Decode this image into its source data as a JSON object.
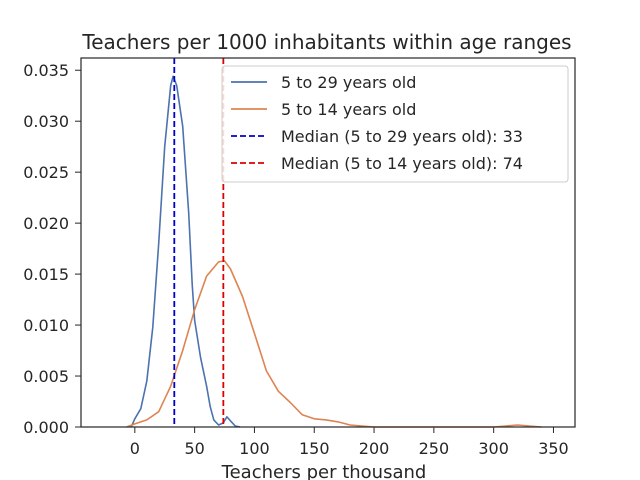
{
  "chart_data": {
    "type": "line",
    "title": "Teachers per 1000 inhabitants within age ranges",
    "xlabel": "Teachers per thousand",
    "ylabel": "",
    "xlim": [
      -45,
      368
    ],
    "ylim": [
      0,
      0.0362
    ],
    "x_ticks": [
      0,
      50,
      100,
      150,
      200,
      250,
      300,
      350
    ],
    "y_ticks": [
      0.0,
      0.005,
      0.01,
      0.015,
      0.02,
      0.025,
      0.03,
      0.035
    ],
    "y_tick_labels": [
      "0.000",
      "0.005",
      "0.010",
      "0.015",
      "0.020",
      "0.025",
      "0.030",
      "0.035"
    ],
    "grid": false,
    "legend_position": "top-right",
    "series": [
      {
        "name": "5 to 29 years old",
        "color": "#4c72b0",
        "style": "solid",
        "points": [
          [
            -3,
            0
          ],
          [
            0,
            0.0008
          ],
          [
            5,
            0.0018
          ],
          [
            10,
            0.0045
          ],
          [
            15,
            0.0098
          ],
          [
            20,
            0.018
          ],
          [
            25,
            0.0275
          ],
          [
            30,
            0.0335
          ],
          [
            32,
            0.0344
          ],
          [
            35,
            0.0335
          ],
          [
            40,
            0.0295
          ],
          [
            45,
            0.021
          ],
          [
            48,
            0.014
          ],
          [
            50,
            0.0105
          ],
          [
            55,
            0.0068
          ],
          [
            60,
            0.004
          ],
          [
            63,
            0.002
          ],
          [
            66,
            0.0007
          ],
          [
            70,
            0.0002
          ],
          [
            74,
            0.0004
          ],
          [
            77,
            0.001
          ],
          [
            80,
            0.0006
          ],
          [
            84,
            0.0001
          ],
          [
            88,
            0
          ]
        ]
      },
      {
        "name": "5 to 14 years old",
        "color": "#dd8452",
        "style": "solid",
        "points": [
          [
            -7,
            0
          ],
          [
            0,
            0.0003
          ],
          [
            10,
            0.0007
          ],
          [
            20,
            0.0015
          ],
          [
            30,
            0.004
          ],
          [
            40,
            0.0075
          ],
          [
            50,
            0.0115
          ],
          [
            60,
            0.0148
          ],
          [
            70,
            0.0162
          ],
          [
            75,
            0.0163
          ],
          [
            80,
            0.0155
          ],
          [
            90,
            0.0128
          ],
          [
            100,
            0.0092
          ],
          [
            110,
            0.0055
          ],
          [
            120,
            0.0035
          ],
          [
            130,
            0.0024
          ],
          [
            140,
            0.0012
          ],
          [
            150,
            0.0008
          ],
          [
            160,
            0.0007
          ],
          [
            170,
            0.0005
          ],
          [
            180,
            0.0002
          ],
          [
            190,
            0.0001
          ],
          [
            200,
            0
          ],
          [
            300,
            0
          ],
          [
            310,
            0.0001
          ],
          [
            320,
            0.0002
          ],
          [
            330,
            0.0001
          ],
          [
            340,
            0
          ]
        ]
      },
      {
        "name": "Median (5 to 29 years old): 33",
        "color": "#0000cc",
        "style": "dashed",
        "x": 33
      },
      {
        "name": "Median (5 to 14 years old): 74",
        "color": "#dd0000",
        "style": "dashed",
        "x": 74
      }
    ]
  }
}
